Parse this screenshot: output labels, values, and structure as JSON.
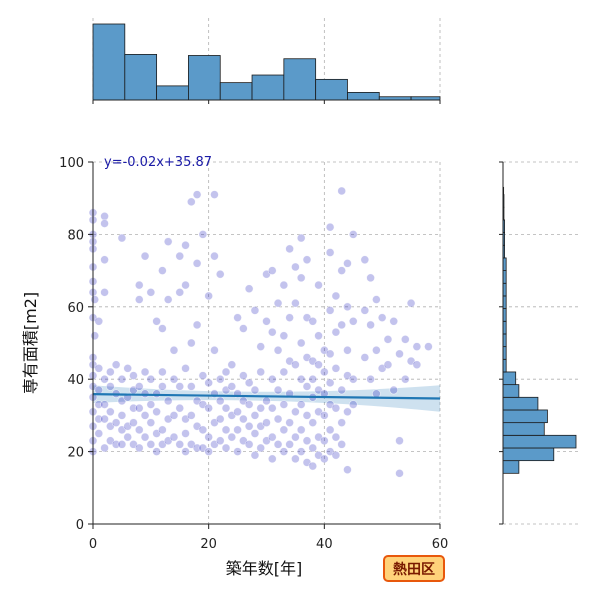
{
  "chart_data": {
    "type": "scatter",
    "xlabel": "築年数[年]",
    "ylabel": "専有面積[m2]",
    "xlim": [
      0,
      60
    ],
    "ylim": [
      0,
      100
    ],
    "xticks": [
      0,
      20,
      40,
      60
    ],
    "yticks": [
      0,
      20,
      40,
      60,
      80,
      100
    ],
    "grid": true,
    "regression": {
      "label": "y=-0.02x+35.87",
      "slope": -0.02,
      "intercept": 35.87,
      "color": "#1f77b4"
    },
    "badge": "熱田区",
    "marginal_x_hist": {
      "bin_edges": [
        0,
        5.5,
        11,
        16.5,
        22,
        27.5,
        33,
        38.5,
        44,
        49.5,
        55,
        60
      ],
      "counts": [
        70,
        42,
        13,
        41,
        16,
        23,
        38,
        19,
        7,
        3,
        3
      ]
    },
    "marginal_y_hist": {
      "bin_edges": [
        14,
        17.5,
        21,
        24.5,
        28,
        31.5,
        35,
        38.5,
        42,
        45.5,
        49,
        52.5,
        56,
        59.5,
        63,
        66.5,
        70,
        73.5,
        77,
        80.5,
        84,
        87.5,
        91,
        93
      ],
      "counts": [
        5,
        16,
        23,
        13,
        14,
        11,
        5,
        4,
        1,
        1,
        1,
        1,
        1,
        1,
        1,
        1,
        1,
        0.5,
        0.5,
        0.5,
        0.3,
        0.3,
        0.2
      ]
    },
    "points": [
      [
        0,
        86
      ],
      [
        0,
        84
      ],
      [
        0,
        80
      ],
      [
        0,
        78
      ],
      [
        0,
        76
      ],
      [
        0,
        71
      ],
      [
        0,
        67
      ],
      [
        0,
        64
      ],
      [
        0,
        57
      ],
      [
        0,
        46
      ],
      [
        0,
        44
      ],
      [
        0,
        41
      ],
      [
        0,
        38
      ],
      [
        0,
        35
      ],
      [
        0,
        31
      ],
      [
        0,
        27
      ],
      [
        0,
        23
      ],
      [
        0,
        20
      ],
      [
        0.3,
        62
      ],
      [
        0.3,
        52
      ],
      [
        1,
        56
      ],
      [
        1,
        43
      ],
      [
        1,
        37
      ],
      [
        1,
        33
      ],
      [
        1,
        29
      ],
      [
        1,
        25
      ],
      [
        2,
        85
      ],
      [
        2,
        83
      ],
      [
        2,
        73
      ],
      [
        2,
        64
      ],
      [
        2,
        40
      ],
      [
        2,
        33
      ],
      [
        2,
        29
      ],
      [
        2,
        21
      ],
      [
        3,
        42
      ],
      [
        3,
        38
      ],
      [
        3,
        31
      ],
      [
        3,
        27
      ],
      [
        3,
        23
      ],
      [
        4,
        44
      ],
      [
        4,
        36
      ],
      [
        4,
        28
      ],
      [
        4,
        22
      ],
      [
        5,
        79
      ],
      [
        5,
        40
      ],
      [
        5,
        34
      ],
      [
        5,
        30
      ],
      [
        5,
        26
      ],
      [
        5,
        22
      ],
      [
        6,
        43
      ],
      [
        6,
        35
      ],
      [
        6,
        27
      ],
      [
        6,
        24
      ],
      [
        7,
        41
      ],
      [
        7,
        37
      ],
      [
        7,
        32
      ],
      [
        7,
        28
      ],
      [
        7,
        22
      ],
      [
        8,
        66
      ],
      [
        8,
        62
      ],
      [
        8,
        38
      ],
      [
        8,
        32
      ],
      [
        8,
        26
      ],
      [
        8,
        21
      ],
      [
        9,
        74
      ],
      [
        9,
        42
      ],
      [
        9,
        36
      ],
      [
        9,
        30
      ],
      [
        9,
        24
      ],
      [
        10,
        64
      ],
      [
        10,
        40
      ],
      [
        10,
        33
      ],
      [
        10,
        28
      ],
      [
        10,
        22
      ],
      [
        11,
        56
      ],
      [
        11,
        36
      ],
      [
        11,
        31
      ],
      [
        11,
        25
      ],
      [
        11,
        20
      ],
      [
        12,
        70
      ],
      [
        12,
        54
      ],
      [
        12,
        42
      ],
      [
        12,
        38
      ],
      [
        12,
        26
      ],
      [
        12,
        22
      ],
      [
        13,
        78
      ],
      [
        13,
        62
      ],
      [
        13,
        34
      ],
      [
        13,
        29
      ],
      [
        13,
        23
      ],
      [
        14,
        48
      ],
      [
        14,
        40
      ],
      [
        14,
        30
      ],
      [
        14,
        24
      ],
      [
        15,
        74
      ],
      [
        15,
        64
      ],
      [
        15,
        38
      ],
      [
        15,
        32
      ],
      [
        15,
        22
      ],
      [
        16,
        77
      ],
      [
        16,
        66
      ],
      [
        16,
        43
      ],
      [
        16,
        29
      ],
      [
        16,
        25
      ],
      [
        16,
        20
      ],
      [
        17,
        89
      ],
      [
        17,
        50
      ],
      [
        17,
        38
      ],
      [
        17,
        30
      ],
      [
        17,
        22
      ],
      [
        18,
        91
      ],
      [
        18,
        72
      ],
      [
        18,
        55
      ],
      [
        18,
        34
      ],
      [
        18,
        27
      ],
      [
        18,
        21
      ],
      [
        19,
        80
      ],
      [
        19,
        41
      ],
      [
        19,
        33
      ],
      [
        19,
        26
      ],
      [
        19,
        21
      ],
      [
        20,
        63
      ],
      [
        20,
        39
      ],
      [
        20,
        32
      ],
      [
        20,
        24
      ],
      [
        20,
        20
      ],
      [
        21,
        91
      ],
      [
        21,
        74
      ],
      [
        21,
        48
      ],
      [
        21,
        36
      ],
      [
        21,
        28
      ],
      [
        21,
        22
      ],
      [
        22,
        69
      ],
      [
        22,
        40
      ],
      [
        22,
        34
      ],
      [
        22,
        29
      ],
      [
        22,
        23
      ],
      [
        23,
        42
      ],
      [
        23,
        37
      ],
      [
        23,
        32
      ],
      [
        23,
        26
      ],
      [
        23,
        21
      ],
      [
        24,
        44
      ],
      [
        24,
        38
      ],
      [
        24,
        30
      ],
      [
        24,
        24
      ],
      [
        25,
        57
      ],
      [
        25,
        36
      ],
      [
        25,
        31
      ],
      [
        25,
        26
      ],
      [
        25,
        20
      ],
      [
        26,
        54
      ],
      [
        26,
        41
      ],
      [
        26,
        34
      ],
      [
        26,
        29
      ],
      [
        26,
        23
      ],
      [
        27,
        65
      ],
      [
        27,
        39
      ],
      [
        27,
        33
      ],
      [
        27,
        27
      ],
      [
        27,
        22
      ],
      [
        28,
        59
      ],
      [
        28,
        37
      ],
      [
        28,
        30
      ],
      [
        28,
        25
      ],
      [
        28,
        19
      ],
      [
        29,
        49
      ],
      [
        29,
        42
      ],
      [
        29,
        32
      ],
      [
        29,
        27
      ],
      [
        29,
        21
      ],
      [
        30,
        69
      ],
      [
        30,
        56
      ],
      [
        30,
        34
      ],
      [
        30,
        28
      ],
      [
        30,
        23
      ],
      [
        31,
        70
      ],
      [
        31,
        53
      ],
      [
        31,
        40
      ],
      [
        31,
        32
      ],
      [
        31,
        24
      ],
      [
        31,
        18
      ],
      [
        32,
        61
      ],
      [
        32,
        48
      ],
      [
        32,
        37
      ],
      [
        32,
        29
      ],
      [
        32,
        22
      ],
      [
        33,
        66
      ],
      [
        33,
        52
      ],
      [
        33,
        42
      ],
      [
        33,
        33
      ],
      [
        33,
        26
      ],
      [
        33,
        20
      ],
      [
        34,
        76
      ],
      [
        34,
        57
      ],
      [
        34,
        45
      ],
      [
        34,
        36
      ],
      [
        34,
        28
      ],
      [
        34,
        22
      ],
      [
        35,
        71
      ],
      [
        35,
        61
      ],
      [
        35,
        44
      ],
      [
        35,
        31
      ],
      [
        35,
        24
      ],
      [
        35,
        18
      ],
      [
        36,
        79
      ],
      [
        36,
        68
      ],
      [
        36,
        50
      ],
      [
        36,
        40
      ],
      [
        36,
        33
      ],
      [
        36,
        26
      ],
      [
        36,
        20
      ],
      [
        37,
        73
      ],
      [
        37,
        57
      ],
      [
        37,
        46
      ],
      [
        37,
        38
      ],
      [
        37,
        30
      ],
      [
        37,
        23
      ],
      [
        37,
        17
      ],
      [
        38,
        56
      ],
      [
        38,
        45
      ],
      [
        38,
        40
      ],
      [
        38,
        35
      ],
      [
        38,
        28
      ],
      [
        38,
        21
      ],
      [
        38,
        16
      ],
      [
        39,
        66
      ],
      [
        39,
        52
      ],
      [
        39,
        44
      ],
      [
        39,
        37
      ],
      [
        39,
        31
      ],
      [
        39,
        24
      ],
      [
        39,
        19
      ],
      [
        40,
        48
      ],
      [
        40,
        42
      ],
      [
        40,
        36
      ],
      [
        40,
        30
      ],
      [
        40,
        23
      ],
      [
        40,
        18
      ],
      [
        41,
        82
      ],
      [
        41,
        75
      ],
      [
        41,
        59
      ],
      [
        41,
        47
      ],
      [
        41,
        39
      ],
      [
        41,
        33
      ],
      [
        41,
        26
      ],
      [
        41,
        20
      ],
      [
        42,
        63
      ],
      [
        42,
        53
      ],
      [
        42,
        43
      ],
      [
        42,
        32
      ],
      [
        42,
        24
      ],
      [
        42,
        19
      ],
      [
        43,
        92
      ],
      [
        43,
        70
      ],
      [
        43,
        55
      ],
      [
        43,
        37
      ],
      [
        43,
        28
      ],
      [
        43,
        22
      ],
      [
        44,
        72
      ],
      [
        44,
        60
      ],
      [
        44,
        48
      ],
      [
        44,
        41
      ],
      [
        44,
        31
      ],
      [
        44,
        15
      ],
      [
        45,
        80
      ],
      [
        45,
        56
      ],
      [
        45,
        40
      ],
      [
        45,
        33
      ],
      [
        47,
        73
      ],
      [
        47,
        59
      ],
      [
        47,
        46
      ],
      [
        48,
        68
      ],
      [
        48,
        55
      ],
      [
        48,
        40
      ],
      [
        49,
        62
      ],
      [
        49,
        48
      ],
      [
        49,
        36
      ],
      [
        50,
        57
      ],
      [
        50,
        43
      ],
      [
        51,
        51
      ],
      [
        51,
        44
      ],
      [
        52,
        56
      ],
      [
        52,
        37
      ],
      [
        53,
        47
      ],
      [
        53,
        23
      ],
      [
        53,
        14
      ],
      [
        54,
        51
      ],
      [
        54,
        40
      ],
      [
        55,
        61
      ],
      [
        55,
        45
      ],
      [
        56,
        49
      ],
      [
        56,
        44
      ],
      [
        58,
        49
      ]
    ]
  }
}
